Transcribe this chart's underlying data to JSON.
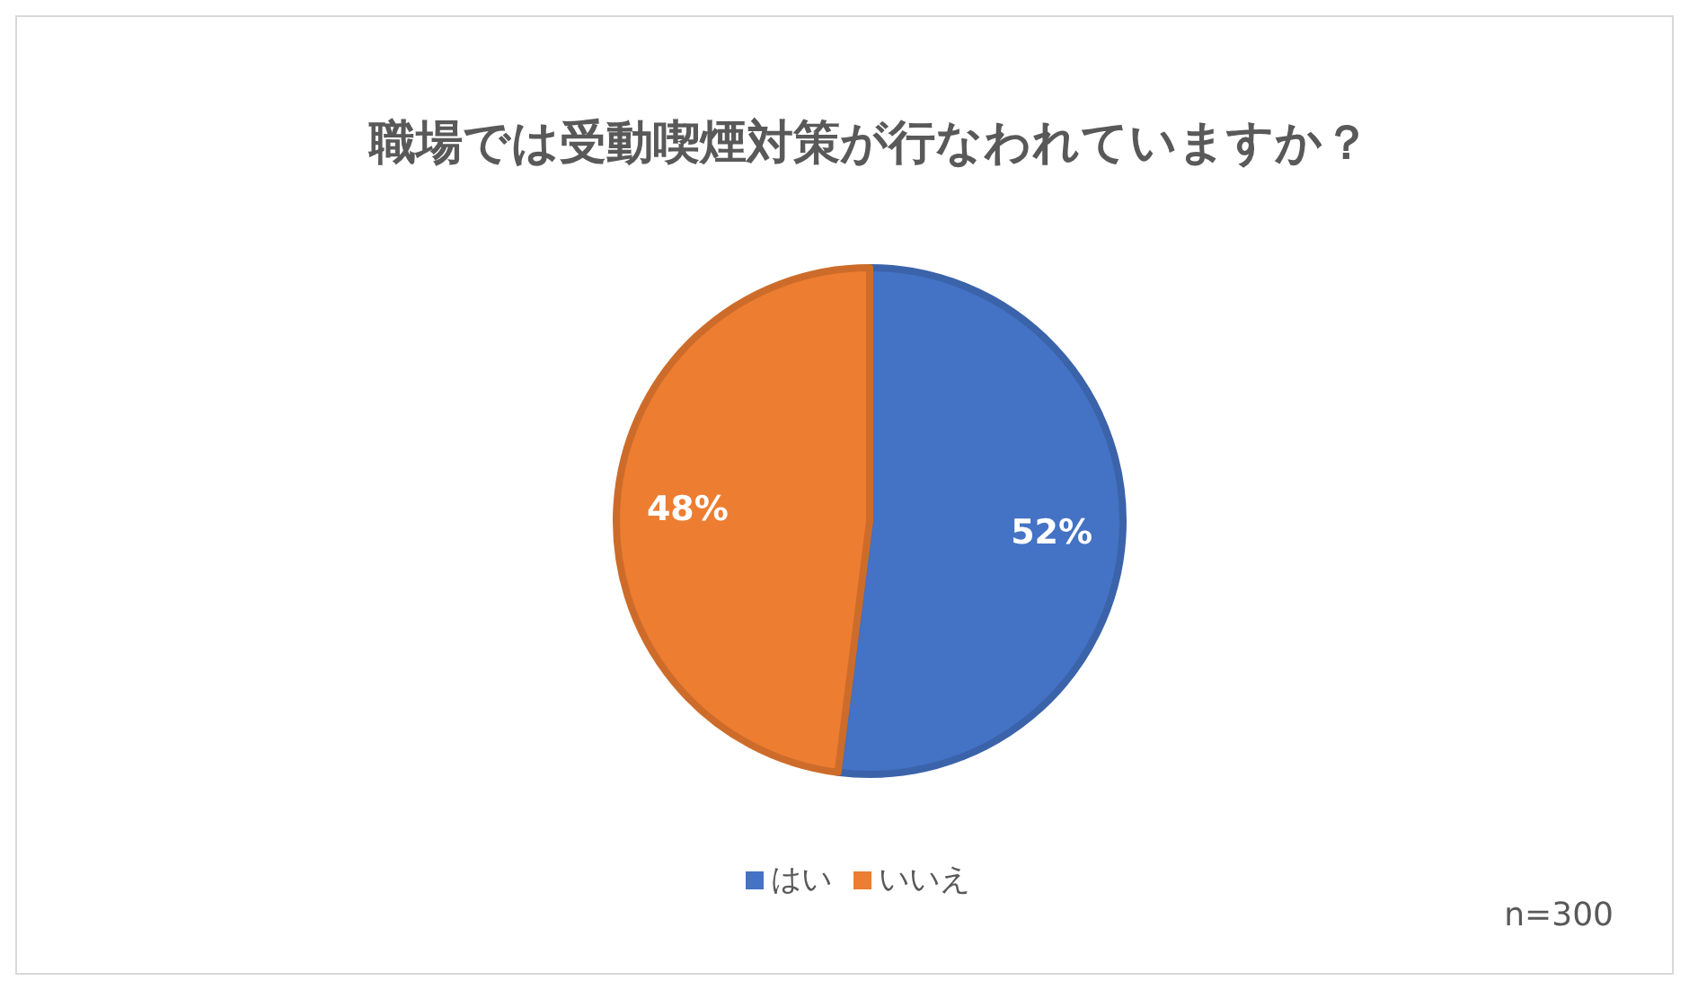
{
  "chart_data": {
    "type": "pie",
    "title": "職場では受動喫煙対策が行なわれていますか？",
    "categories": [
      "はい",
      "いいえ"
    ],
    "values": [
      52,
      48
    ],
    "value_labels": [
      "52%",
      "48%"
    ],
    "colors": [
      "#4472c4",
      "#ed7d31"
    ],
    "legend": "bottom",
    "annotations": [
      "n=300"
    ]
  }
}
